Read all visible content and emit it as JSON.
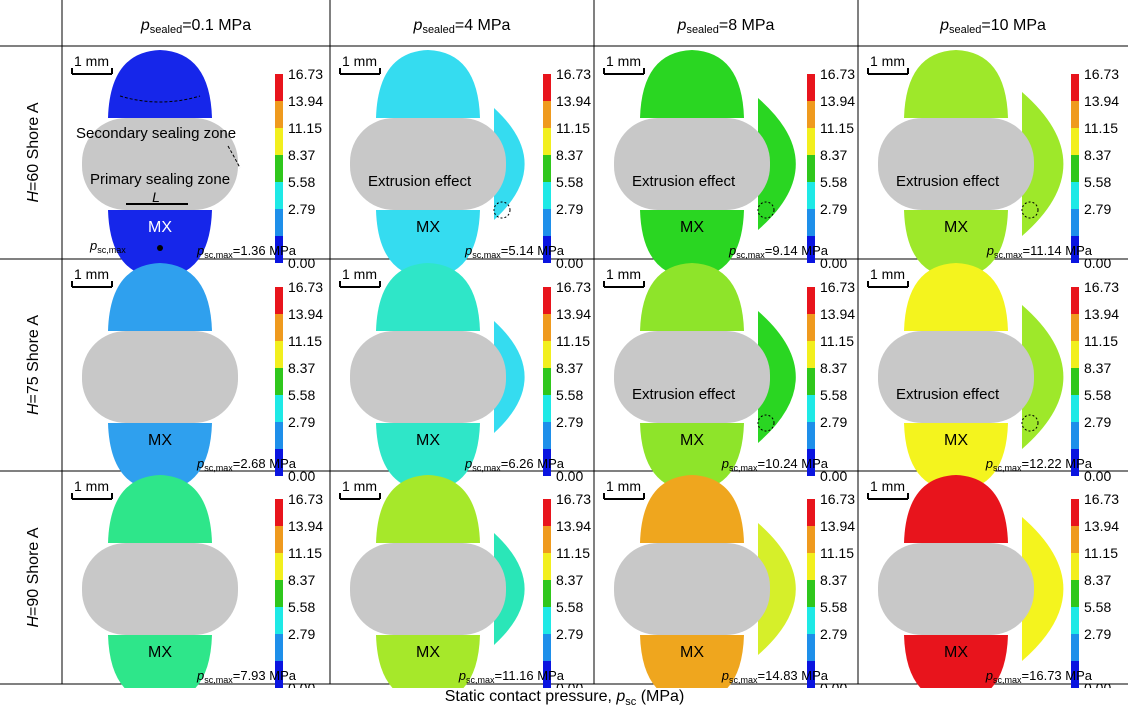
{
  "columns": [
    {
      "sym": "p",
      "sub": "sealed",
      "val": "=0.1 MPa"
    },
    {
      "sym": "p",
      "sub": "sealed",
      "val": "=4 MPa"
    },
    {
      "sym": "p",
      "sub": "sealed",
      "val": "=8 MPa"
    },
    {
      "sym": "p",
      "sub": "sealed",
      "val": "=10 MPa"
    }
  ],
  "rows": [
    {
      "sym": "H",
      "val": "=60 Shore A"
    },
    {
      "sym": "H",
      "val": "=75 Shore A"
    },
    {
      "sym": "H",
      "val": "=90 Shore A"
    }
  ],
  "scale_bar": "1 mm",
  "colorbar_ticks": [
    "16.73",
    "13.94",
    "11.15",
    "8.37",
    "5.58",
    "2.79",
    "0.00"
  ],
  "colorbar_colors": [
    "#e8141c",
    "#ef9a1e",
    "#f2ef1e",
    "#2fc71c",
    "#1ee9e6",
    "#1e8fea",
    "#0a14e0"
  ],
  "shape_color": "#c8c8c8",
  "element_label": "MX",
  "pmax": {
    "sym": "p",
    "sub": "sc,max",
    "unit": " MPa"
  },
  "cells": [
    [
      {
        "pmax": "1.36",
        "top": "#1626ea",
        "side": "#1626ea",
        "bottom": "#1626ea",
        "annot": "r0c0"
      },
      {
        "pmax": "5.14",
        "top": "#35dcf0",
        "side": "#35dcf0",
        "bottom": "#35dcf0",
        "annot": "extr"
      },
      {
        "pmax": "9.14",
        "top": "#2ad622",
        "side": "#2ad622",
        "bottom": "#2ad622",
        "annot": "extr"
      },
      {
        "pmax": "11.14",
        "top": "#9ee82a",
        "side": "#9ee82a",
        "bottom": "#9ee82a",
        "annot": "extr"
      }
    ],
    [
      {
        "pmax": "2.68",
        "top": "#2fa0ee",
        "side": "#1626ea",
        "bottom": "#2fa0ee",
        "annot": ""
      },
      {
        "pmax": "6.26",
        "top": "#2fe6c8",
        "side": "#35dcf0",
        "bottom": "#2fe6c8",
        "annot": ""
      },
      {
        "pmax": "10.24",
        "top": "#8ee42a",
        "side": "#2ad622",
        "bottom": "#8ee42a",
        "annot": "extr"
      },
      {
        "pmax": "12.22",
        "top": "#f4f41e",
        "side": "#9ee82a",
        "bottom": "#f4f41e",
        "annot": "extr"
      }
    ],
    [
      {
        "pmax": "7.93",
        "top": "#2ee68a",
        "side": "#1e8fea",
        "bottom": "#2ee68a",
        "annot": ""
      },
      {
        "pmax": "11.16",
        "top": "#a6e82a",
        "side": "#2ae6b8",
        "bottom": "#a6e82a",
        "annot": ""
      },
      {
        "pmax": "14.83",
        "top": "#efa61e",
        "side": "#d6ef2a",
        "bottom": "#efa61e",
        "annot": ""
      },
      {
        "pmax": "16.73",
        "top": "#e8141c",
        "side": "#f4f41e",
        "bottom": "#e8141c",
        "annot": ""
      }
    ]
  ],
  "annotations": {
    "secondary": "Secondary sealing zone",
    "primary": "Primary sealing zone",
    "length": "L",
    "point_sym": "p",
    "point_sub": "sc,max",
    "extrusion": "Extrusion effect"
  },
  "caption": {
    "text": "Static contact pressure, ",
    "sym": "p",
    "sub": "sc",
    "unit": " (MPa)"
  }
}
